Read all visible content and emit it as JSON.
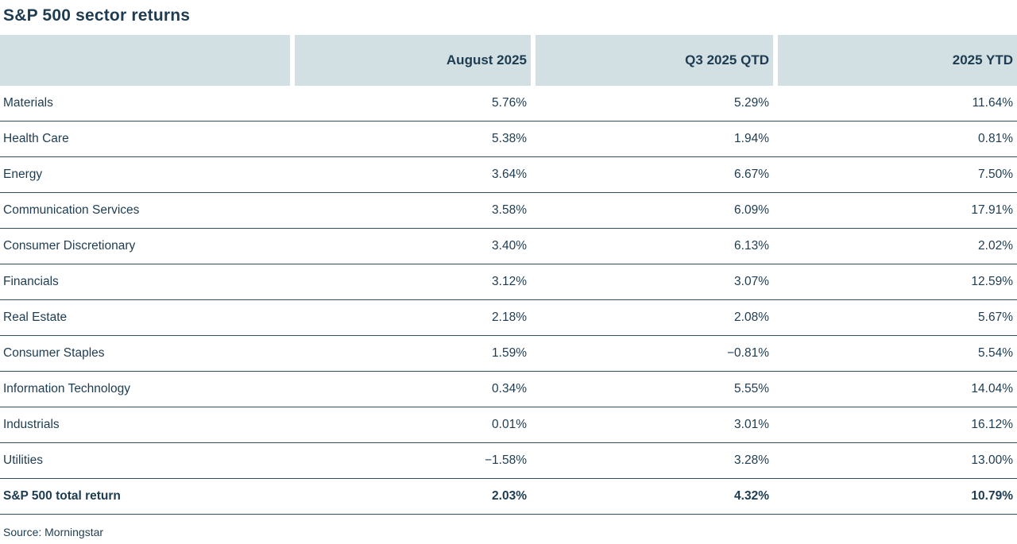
{
  "title": "S&P 500 sector returns",
  "source": "Source: Morningstar",
  "colors": {
    "text": "#1d3c51",
    "header_bg": "#d3e0e3",
    "divider": "#30505f",
    "bg": "#ffffff"
  },
  "chart_data": {
    "type": "table",
    "title": "S&P 500 sector returns",
    "columns": [
      "",
      "August 2025",
      "Q3 2025 QTD",
      "2025 YTD"
    ],
    "rows": [
      {
        "sector": "Materials",
        "values": [
          "5.76%",
          "5.29%",
          "11.64%"
        ]
      },
      {
        "sector": "Health Care",
        "values": [
          "5.38%",
          "1.94%",
          "0.81%"
        ]
      },
      {
        "sector": "Energy",
        "values": [
          "3.64%",
          "6.67%",
          "7.50%"
        ]
      },
      {
        "sector": "Communication Services",
        "values": [
          "3.58%",
          "6.09%",
          "17.91%"
        ]
      },
      {
        "sector": "Consumer Discretionary",
        "values": [
          "3.40%",
          "6.13%",
          "2.02%"
        ]
      },
      {
        "sector": "Financials",
        "values": [
          "3.12%",
          "3.07%",
          "12.59%"
        ]
      },
      {
        "sector": "Real Estate",
        "values": [
          "2.18%",
          "2.08%",
          "5.67%"
        ]
      },
      {
        "sector": "Consumer Staples",
        "values": [
          "1.59%",
          "−0.81%",
          "5.54%"
        ]
      },
      {
        "sector": "Information Technology",
        "values": [
          "0.34%",
          "5.55%",
          "14.04%"
        ]
      },
      {
        "sector": "Industrials",
        "values": [
          "0.01%",
          "3.01%",
          "16.12%"
        ]
      },
      {
        "sector": "Utilities",
        "values": [
          "−1.58%",
          "3.28%",
          "13.00%"
        ]
      },
      {
        "sector": "S&P 500 total return",
        "values": [
          "2.03%",
          "4.32%",
          "10.79%"
        ],
        "is_total": true
      }
    ],
    "legend_position": "none",
    "grid": "horizontal-dividers"
  }
}
